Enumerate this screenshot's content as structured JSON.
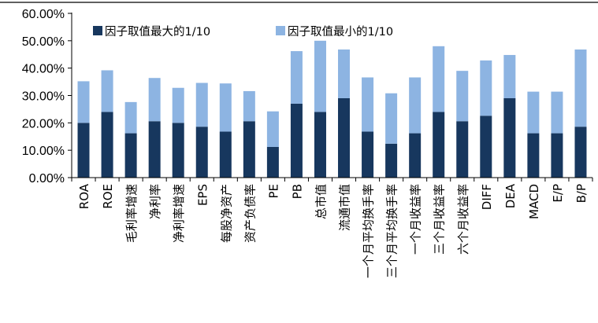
{
  "chart_data": {
    "type": "bar",
    "stacked": true,
    "categories": [
      "ROA",
      "ROE",
      "毛利率增速",
      "净利率",
      "净利率增速",
      "EPS",
      "每股净资产",
      "资产负债率",
      "PE",
      "PB",
      "总市值",
      "流通市值",
      "一个月平均换手率",
      "三个月平均换手率",
      "一个月收益率",
      "三个月收益率",
      "六个月收益率",
      "DIFF",
      "DEA",
      "MACD",
      "E/P",
      "B/P"
    ],
    "series": [
      {
        "name": "因子取值最大的1/10",
        "color": "#17375e",
        "values": [
          20,
          24,
          16.2,
          20.6,
          20,
          18.6,
          16.8,
          20.6,
          11.2,
          27,
          24,
          29,
          16.8,
          12.4,
          16.2,
          24,
          20.6,
          22.6,
          29,
          16.2,
          16.2,
          18.6
        ]
      },
      {
        "name": "因子取值最小的1/10",
        "color": "#8db4e2",
        "values": [
          15.2,
          15.2,
          11.4,
          15.8,
          12.8,
          16,
          17.6,
          11,
          13,
          19.2,
          26,
          17.8,
          19.8,
          18.4,
          20.4,
          24,
          18.4,
          20.2,
          15.8,
          15.2,
          15.2,
          28.2
        ]
      }
    ],
    "ylim": [
      0,
      60
    ],
    "yticks": [
      "0.00%",
      "10.00%",
      "20.00%",
      "30.00%",
      "40.00%",
      "50.00%",
      "60.00%"
    ],
    "legend": "top-left",
    "grid": false
  }
}
